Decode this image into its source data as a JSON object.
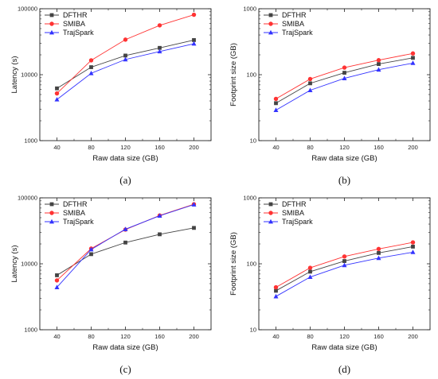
{
  "chart_data": [
    {
      "id": "a",
      "type": "line",
      "panel_label": "(a)",
      "xlabel": "Raw data size (GB)",
      "ylabel": "Latency (s)",
      "x": [
        40,
        80,
        120,
        160,
        200
      ],
      "x_ticks": [
        "40",
        "80",
        "120",
        "160",
        "200"
      ],
      "y_scale": "log",
      "ylim": [
        1000,
        100000
      ],
      "y_ticks": [
        "1000",
        "10000",
        "100000"
      ],
      "legend_position": "top-left",
      "series": [
        {
          "name": "DFTHR",
          "values": [
            6200,
            13000,
            19500,
            25500,
            33500
          ],
          "color": "#444444",
          "marker": "square"
        },
        {
          "name": "SMIBA",
          "values": [
            5200,
            16500,
            34000,
            56000,
            81000
          ],
          "color": "#ff3333",
          "marker": "circle"
        },
        {
          "name": "TrajSpark",
          "values": [
            4200,
            10500,
            17000,
            22500,
            29500
          ],
          "color": "#3333ff",
          "marker": "triangle"
        }
      ]
    },
    {
      "id": "b",
      "type": "line",
      "panel_label": "(b)",
      "xlabel": "Raw data size (GB)",
      "ylabel": "Footprint size (GB)",
      "x": [
        40,
        80,
        120,
        160,
        200
      ],
      "x_ticks": [
        "40",
        "80",
        "120",
        "160",
        "200"
      ],
      "y_scale": "log",
      "ylim": [
        10,
        1000
      ],
      "y_ticks": [
        "10",
        "100",
        "1000"
      ],
      "legend_position": "top-left",
      "series": [
        {
          "name": "DFTHR",
          "values": [
            37,
            74,
            107,
            145,
            180
          ],
          "color": "#444444",
          "marker": "square"
        },
        {
          "name": "SMIBA",
          "values": [
            43,
            86,
            128,
            166,
            210
          ],
          "color": "#ff3333",
          "marker": "circle"
        },
        {
          "name": "TrajSpark",
          "values": [
            29,
            58,
            88,
            119,
            150
          ],
          "color": "#3333ff",
          "marker": "triangle"
        }
      ]
    },
    {
      "id": "c",
      "type": "line",
      "panel_label": "(c)",
      "xlabel": "Raw data size (GB)",
      "ylabel": "Latency (s)",
      "x": [
        40,
        80,
        120,
        160,
        200
      ],
      "x_ticks": [
        "40",
        "80",
        "120",
        "160",
        "200"
      ],
      "y_scale": "log",
      "ylim": [
        1000,
        100000
      ],
      "y_ticks": [
        "1000",
        "10000",
        "100000"
      ],
      "legend_position": "top-left",
      "series": [
        {
          "name": "DFTHR",
          "values": [
            6700,
            14000,
            21000,
            28000,
            35000
          ],
          "color": "#444444",
          "marker": "square"
        },
        {
          "name": "SMIBA",
          "values": [
            5600,
            17000,
            33000,
            54000,
            80000
          ],
          "color": "#ff3333",
          "marker": "circle"
        },
        {
          "name": "TrajSpark",
          "values": [
            4400,
            16500,
            33500,
            53500,
            79000
          ],
          "color": "#3333ff",
          "marker": "triangle"
        }
      ]
    },
    {
      "id": "d",
      "type": "line",
      "panel_label": "(d)",
      "xlabel": "Raw data size (GB)",
      "ylabel": "Footprint size (GB)",
      "x": [
        40,
        80,
        120,
        160,
        200
      ],
      "x_ticks": [
        "40",
        "80",
        "120",
        "160",
        "200"
      ],
      "y_scale": "log",
      "ylim": [
        10,
        1000
      ],
      "y_ticks": [
        "10",
        "100",
        "1000"
      ],
      "legend_position": "top-left",
      "series": [
        {
          "name": "DFTHR",
          "values": [
            39,
            76,
            110,
            146,
            182
          ],
          "color": "#444444",
          "marker": "square"
        },
        {
          "name": "SMIBA",
          "values": [
            44,
            87,
            129,
            168,
            211
          ],
          "color": "#ff3333",
          "marker": "circle"
        },
        {
          "name": "TrajSpark",
          "values": [
            32,
            63,
            95,
            122,
            150
          ],
          "color": "#3333ff",
          "marker": "triangle"
        }
      ]
    }
  ]
}
